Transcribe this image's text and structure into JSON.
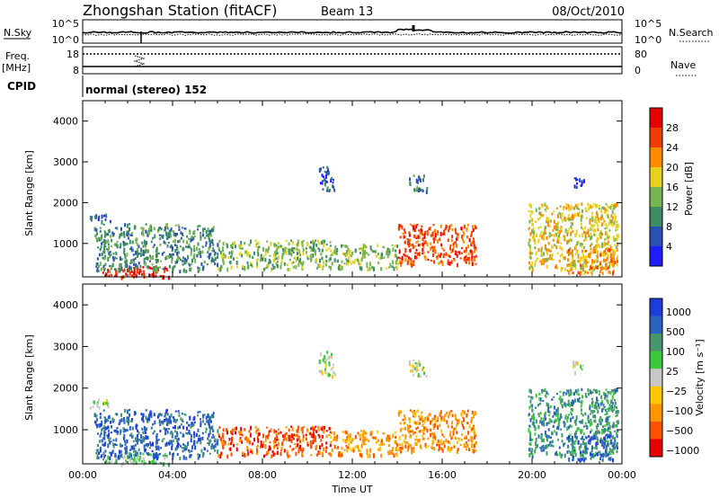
{
  "header": {
    "station": "Zhongshan Station (fitACF)",
    "beam": "Beam 13",
    "date": "08/Oct/2010"
  },
  "top_panels": {
    "nsky_label": "N.Sky",
    "nsearch_label": "N.Search",
    "nsky_ticks": [
      "10^5",
      "10^0"
    ],
    "nsearch_ticks": [
      "10^5",
      "10^0"
    ],
    "freq_label": "Freq.",
    "freq_unit": "[MHz]",
    "freq_ticks": [
      "18",
      "8"
    ],
    "nave_label": "Nave",
    "nave_ticks": [
      "80",
      "0"
    ],
    "cpid_label": "CPID",
    "cpid_text": "normal (stereo) 152"
  },
  "colors": {
    "power_scale": [
      "#1e1eff",
      "#2a50b4",
      "#3c8c64",
      "#78b450",
      "#e6d21e",
      "#ff8c00",
      "#f03c00",
      "#e60000"
    ],
    "velocity_scale": [
      "#e60000",
      "#ff5000",
      "#ff9600",
      "#ffc800",
      "#c8c8c8",
      "#3cc83c",
      "#46966e",
      "#2a64be",
      "#1e3cdc"
    ]
  },
  "chart_data": [
    {
      "type": "heatmap",
      "name_var": "Power",
      "ylabel": "Slant Range [km]",
      "ylim": [
        180,
        4500
      ],
      "xlim": [
        "00:00",
        "24:00"
      ],
      "x_ticks": [
        "00:00",
        "04:00",
        "08:00",
        "12:00",
        "16:00",
        "20:00",
        "00:00"
      ],
      "y_ticks": [
        "1000",
        "2000",
        "3000",
        "4000"
      ],
      "colorbar_label": "Power [dB]",
      "colorbar_ticks": [
        "4",
        "8",
        "12",
        "16",
        "20",
        "24",
        "28"
      ],
      "regions": [
        {
          "t0": 0.8,
          "t1": 3.8,
          "r0": 200,
          "r1": 450,
          "level": 7
        },
        {
          "t0": 0.5,
          "t1": 6.0,
          "r0": 350,
          "r1": 1500,
          "level": 2
        },
        {
          "t0": 6.0,
          "t1": 11.0,
          "r0": 400,
          "r1": 1100,
          "level": 3
        },
        {
          "t0": 11.0,
          "t1": 14.0,
          "r0": 400,
          "r1": 1000,
          "level": 3
        },
        {
          "t0": 14.0,
          "t1": 17.5,
          "r0": 500,
          "r1": 1500,
          "level": 6
        },
        {
          "t0": 14.5,
          "t1": 15.3,
          "r0": 2300,
          "r1": 2700,
          "level": 2
        },
        {
          "t0": 10.5,
          "t1": 11.2,
          "r0": 2300,
          "r1": 2900,
          "level": 1
        },
        {
          "t0": 0.3,
          "t1": 1.2,
          "r0": 1550,
          "r1": 1750,
          "level": 1
        },
        {
          "t0": 19.8,
          "t1": 23.8,
          "r0": 400,
          "r1": 2000,
          "level": 4
        },
        {
          "t0": 21.5,
          "t1": 23.8,
          "r0": 300,
          "r1": 900,
          "level": 5
        },
        {
          "t0": 21.8,
          "t1": 22.3,
          "r0": 2400,
          "r1": 2700,
          "level": 0
        }
      ]
    },
    {
      "type": "heatmap",
      "name_var": "Velocity",
      "ylabel": "Slant Range [km]",
      "xlabel": "Time UT",
      "ylim": [
        180,
        4500
      ],
      "xlim": [
        "00:00",
        "24:00"
      ],
      "x_ticks": [
        "00:00",
        "04:00",
        "08:00",
        "12:00",
        "16:00",
        "20:00",
        "00:00"
      ],
      "y_ticks": [
        "1000",
        "2000",
        "3000",
        "4000"
      ],
      "colorbar_label": "Velocity [m s⁻¹]",
      "colorbar_ticks": [
        "1000",
        "500",
        "100",
        "25",
        "−25",
        "−100",
        "−500",
        "−1000"
      ],
      "regions": [
        {
          "t0": 0.8,
          "t1": 3.8,
          "r0": 200,
          "r1": 450,
          "level": 5
        },
        {
          "t0": 0.5,
          "t1": 6.0,
          "r0": 350,
          "r1": 1500,
          "level": 7
        },
        {
          "t0": 6.0,
          "t1": 11.0,
          "r0": 400,
          "r1": 1100,
          "level": 1
        },
        {
          "t0": 11.0,
          "t1": 14.0,
          "r0": 400,
          "r1": 1000,
          "level": 2
        },
        {
          "t0": 14.0,
          "t1": 17.5,
          "r0": 500,
          "r1": 1500,
          "level": 2
        },
        {
          "t0": 14.5,
          "t1": 15.3,
          "r0": 2300,
          "r1": 2700,
          "level": 4
        },
        {
          "t0": 10.5,
          "t1": 11.2,
          "r0": 2300,
          "r1": 2900,
          "level": 4
        },
        {
          "t0": 0.3,
          "t1": 1.2,
          "r0": 1550,
          "r1": 1750,
          "level": 4
        },
        {
          "t0": 19.8,
          "t1": 23.8,
          "r0": 400,
          "r1": 2000,
          "level": 6
        },
        {
          "t0": 21.5,
          "t1": 23.8,
          "r0": 300,
          "r1": 900,
          "level": 7
        },
        {
          "t0": 21.8,
          "t1": 22.3,
          "r0": 2400,
          "r1": 2700,
          "level": 4
        }
      ]
    }
  ]
}
